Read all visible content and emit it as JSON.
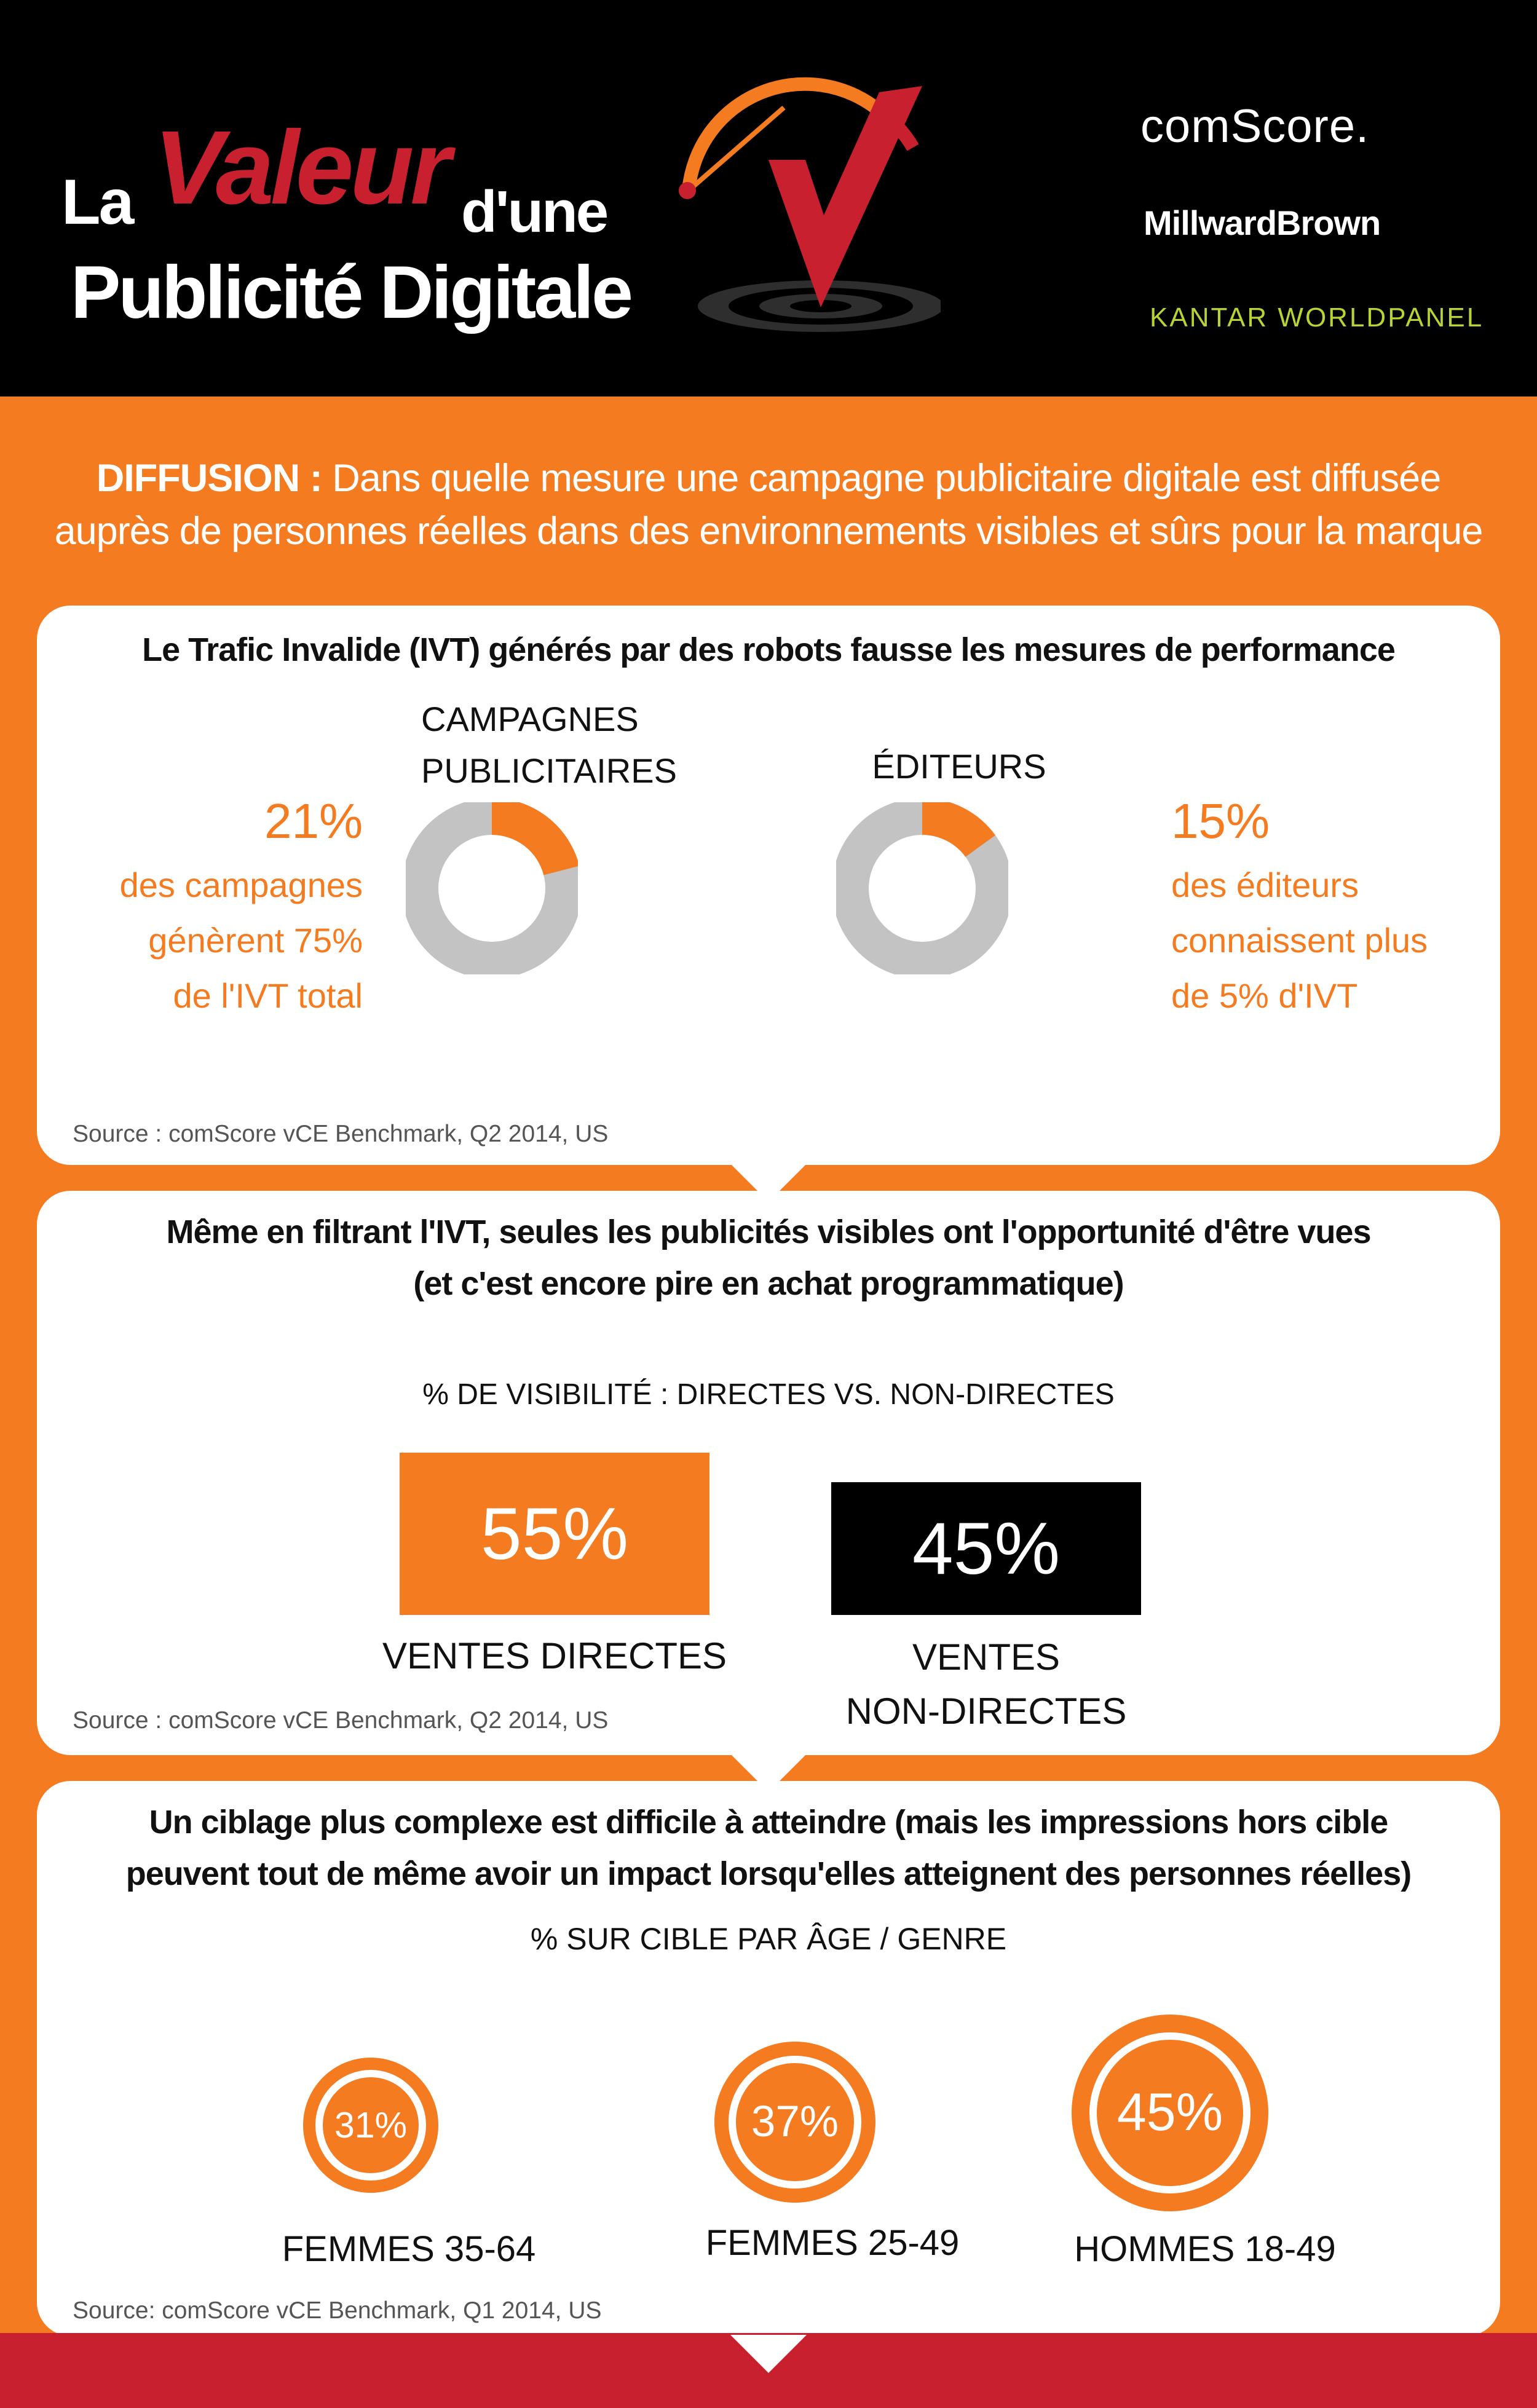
{
  "header": {
    "title_la": "La",
    "title_valeur": "Valeur",
    "title_dune": "d'une",
    "title_line2": "Publicité Digitale",
    "logos": {
      "comscore": "comScore.",
      "millwardbrown": "MillwardBrown",
      "kantar": "KANTAR WORLDPANEL"
    }
  },
  "intro": {
    "label": "DIFFUSION :",
    "text": "Dans quelle mesure une campagne publicitaire digitale est diffusée auprès de personnes réelles dans des environnements visibles et sûrs pour la marque"
  },
  "colors": {
    "orange": "#f47b20",
    "red": "#c8202f",
    "gray": "#c4c3c3",
    "black": "#000000"
  },
  "chart_data": [
    {
      "type": "pie",
      "title": "Le Trafic Invalide (IVT) générés par des robots fausse les mesures de performance",
      "charts": [
        {
          "label": "CAMPAGNES PUBLICITAIRES",
          "value_pct": 21,
          "value_text": "21%",
          "caption": [
            "des campagnes",
            "génèrent 75%",
            "de l'IVT total"
          ]
        },
        {
          "label": "ÉDITEURS",
          "value_pct": 15,
          "value_text": "15%",
          "caption": [
            "des éditeurs",
            "connaissent plus",
            "de 5% d'IVT"
          ]
        }
      ],
      "source": "Source : comScore vCE Benchmark, Q2 2014, US"
    },
    {
      "type": "bar",
      "title_line1": "Même en filtrant l'IVT, seules les publicités visibles ont l'opportunité d'être vues",
      "title_line2": "(et c'est encore pire en achat programmatique)",
      "subtitle": "% DE VISIBILITÉ : DIRECTES VS. NON-DIRECTES",
      "categories": [
        "VENTES DIRECTES",
        "VENTES NON-DIRECTES"
      ],
      "category_lines": [
        [
          "VENTES DIRECTES"
        ],
        [
          "VENTES",
          "NON-DIRECTES"
        ]
      ],
      "values": [
        55,
        45
      ],
      "value_texts": [
        "55%",
        "45%"
      ],
      "source": "Source : comScore vCE Benchmark, Q2 2014, US"
    },
    {
      "type": "bubble",
      "title_line1": "Un ciblage plus complexe est difficile à atteindre (mais les impressions hors cible",
      "title_line2": "peuvent tout de même avoir un impact lorsqu'elles atteignent des personnes réelles)",
      "subtitle": "% SUR CIBLE PAR ÂGE / GENRE",
      "categories": [
        "FEMMES 35-64",
        "FEMMES 25-49",
        "HOMMES 18-49"
      ],
      "values": [
        31,
        37,
        45
      ],
      "value_texts": [
        "31%",
        "37%",
        "45%"
      ],
      "source": "Source: comScore vCE Benchmark, Q1 2014, US"
    }
  ]
}
